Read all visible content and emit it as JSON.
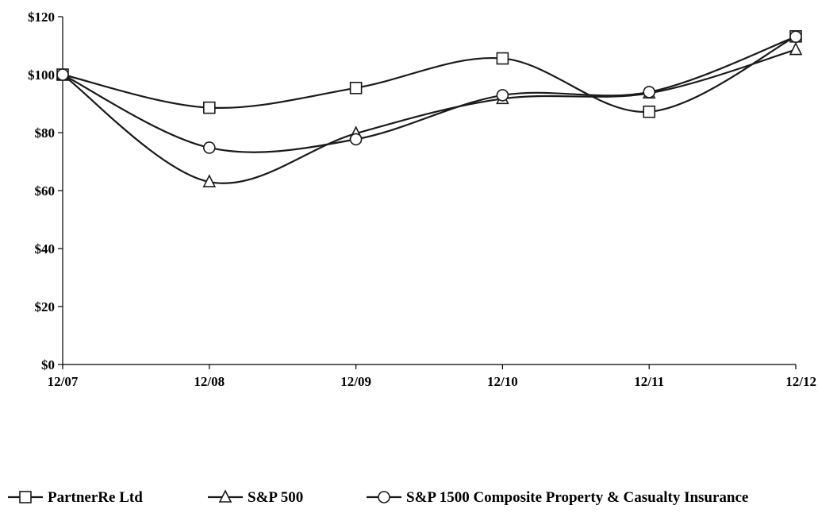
{
  "chart_data": {
    "type": "line",
    "title": "",
    "xlabel": "",
    "ylabel": "",
    "categories": [
      "12/07",
      "12/08",
      "12/09",
      "12/10",
      "12/11",
      "12/12"
    ],
    "ylim": [
      0,
      120
    ],
    "yticks": [
      0,
      20,
      40,
      60,
      80,
      100,
      120
    ],
    "ytick_labels": [
      "$0",
      "$20",
      "$40",
      "$60",
      "$80",
      "$100",
      "$120"
    ],
    "grid": false,
    "legend_position": "bottom",
    "series": [
      {
        "name": "PartnerRe Ltd",
        "marker": "square",
        "values": [
          100,
          88.6,
          95.4,
          105.6,
          87.2,
          113.2
        ]
      },
      {
        "name": "S&P 500",
        "marker": "triangle",
        "values": [
          100,
          63.0,
          79.7,
          91.7,
          93.6,
          108.6
        ]
      },
      {
        "name": "S&P 1500 Composite Property & Casualty Insurance",
        "marker": "circle",
        "values": [
          100,
          74.8,
          77.7,
          92.9,
          94.0,
          113.1
        ]
      }
    ],
    "colors": {
      "line": "#1a1a1a",
      "marker_fill": "#ffffff"
    }
  }
}
